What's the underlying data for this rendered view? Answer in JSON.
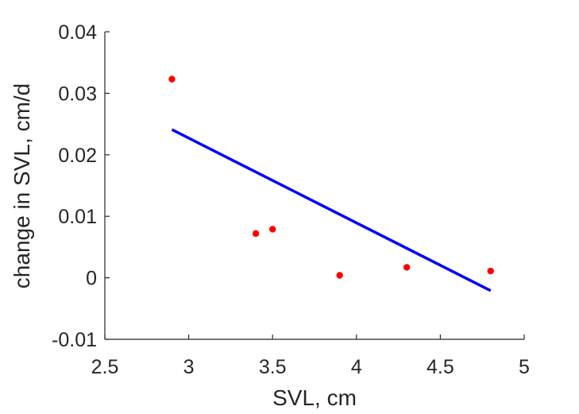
{
  "chart_data": {
    "type": "scatter",
    "title": "",
    "xlabel": "SVL, cm",
    "ylabel": "change in SVL, cm/d",
    "xlim": [
      2.5,
      5
    ],
    "ylim": [
      -0.01,
      0.04
    ],
    "xticks": [
      "2.5",
      "3",
      "3.5",
      "4",
      "4.5",
      "5"
    ],
    "yticks": [
      "-0.01",
      "0",
      "0.01",
      "0.02",
      "0.03",
      "0.04"
    ],
    "grid": false,
    "legend": "none",
    "series": [
      {
        "type": "scatter",
        "color": "#ff0000",
        "points": [
          {
            "x": 2.9,
            "y": 0.0323
          },
          {
            "x": 3.4,
            "y": 0.0072
          },
          {
            "x": 3.5,
            "y": 0.0079
          },
          {
            "x": 3.9,
            "y": 0.0004
          },
          {
            "x": 4.3,
            "y": 0.0017
          },
          {
            "x": 4.8,
            "y": 0.0011
          }
        ]
      },
      {
        "type": "line",
        "color": "#0000ff",
        "points": [
          {
            "x": 2.9,
            "y": 0.0241
          },
          {
            "x": 4.8,
            "y": -0.0021
          }
        ]
      }
    ]
  }
}
